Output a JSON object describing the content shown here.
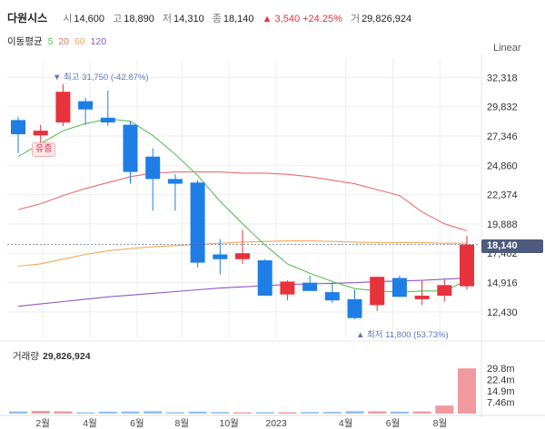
{
  "header": {
    "name": "다원시스",
    "open_label": "시",
    "open": "14,600",
    "high_label": "고",
    "high": "18,890",
    "low_label": "저",
    "low": "14,310",
    "close_label": "종",
    "close": "18,140",
    "change": "▲ 3,540 +24.25%",
    "volume_label": "거",
    "volume": "29,826,924"
  },
  "ma_legend": {
    "label": "이동평균",
    "p5": "5",
    "p20": "20",
    "p60": "60",
    "p120": "120",
    "colors": {
      "ma5": "#5cbf57",
      "ma20": "#ec6d6d",
      "ma60": "#f4a55b",
      "ma120": "#8d58c9"
    }
  },
  "scale_mode": "Linear",
  "annotations": {
    "high": "▼ 최고 31,750 (-42.87%)",
    "low": "▲ 최저 11,800 (53.73%)",
    "badge": "유증"
  },
  "current_price_tag": "18,140",
  "volume_panel": {
    "title": "거래량",
    "value": "29,826,924"
  },
  "colors": {
    "up": "#e8323c",
    "down": "#1e7ee6",
    "grid": "#eeeeee"
  },
  "chart_data": {
    "type": "candlestick",
    "y_ticks": [
      "32,318",
      "29,832",
      "27,346",
      "24,860",
      "22,374",
      "19,888",
      "17,402",
      "14,916",
      "12,430"
    ],
    "y_tick_values": [
      32318,
      29832,
      27346,
      24860,
      22374,
      19888,
      17402,
      14916,
      12430
    ],
    "ylim": [
      10800,
      33500
    ],
    "x_labels": [
      "2월",
      "4월",
      "6월",
      "8월",
      "10월",
      "2023",
      "4월",
      "6월",
      "8월"
    ],
    "x_label_at": [
      1.1,
      3.2,
      5.3,
      7.3,
      9.4,
      11.5,
      14.6,
      16.7,
      18.8
    ],
    "candles": [
      {
        "o": 28700,
        "h": 29000,
        "l": 25900,
        "c": 27500
      },
      {
        "o": 27400,
        "h": 28300,
        "l": 26500,
        "c": 27800
      },
      {
        "o": 28500,
        "h": 31750,
        "l": 28200,
        "c": 31100
      },
      {
        "o": 30300,
        "h": 30600,
        "l": 28300,
        "c": 29600
      },
      {
        "o": 28900,
        "h": 31200,
        "l": 28200,
        "c": 28500
      },
      {
        "o": 28300,
        "h": 28600,
        "l": 23300,
        "c": 24300
      },
      {
        "o": 25600,
        "h": 26300,
        "l": 21000,
        "c": 23700
      },
      {
        "o": 23700,
        "h": 24100,
        "l": 21000,
        "c": 23300
      },
      {
        "o": 23400,
        "h": 23600,
        "l": 16200,
        "c": 16600
      },
      {
        "o": 17300,
        "h": 18600,
        "l": 15600,
        "c": 16900
      },
      {
        "o": 16900,
        "h": 19400,
        "l": 16500,
        "c": 17400
      },
      {
        "o": 16800,
        "h": 16900,
        "l": 13800,
        "c": 13800
      },
      {
        "o": 13900,
        "h": 15100,
        "l": 13400,
        "c": 15000
      },
      {
        "o": 14900,
        "h": 15500,
        "l": 14300,
        "c": 14200
      },
      {
        "o": 14100,
        "h": 14900,
        "l": 13200,
        "c": 13400
      },
      {
        "o": 13500,
        "h": 14300,
        "l": 11800,
        "c": 11900
      },
      {
        "o": 13000,
        "h": 15400,
        "l": 12500,
        "c": 15400
      },
      {
        "o": 15300,
        "h": 15500,
        "l": 13700,
        "c": 13700
      },
      {
        "o": 13500,
        "h": 15100,
        "l": 13000,
        "c": 13800
      },
      {
        "o": 13800,
        "h": 15200,
        "l": 13300,
        "c": 14700
      },
      {
        "o": 14600,
        "h": 18890,
        "l": 14310,
        "c": 18140
      }
    ],
    "ma5": [
      25600,
      26700,
      27800,
      28400,
      28800,
      28600,
      27400,
      25800,
      24000,
      21800,
      19900,
      18100,
      16500,
      15700,
      15000,
      14400,
      14200,
      14100,
      14200,
      14200,
      15100
    ],
    "ma20": [
      21100,
      21600,
      22300,
      22900,
      23400,
      23900,
      24200,
      24300,
      24300,
      24300,
      24200,
      24200,
      24100,
      23900,
      23600,
      23300,
      22800,
      22300,
      20900,
      19900,
      19300
    ],
    "ma60": [
      16300,
      16500,
      16900,
      17300,
      17600,
      17800,
      17950,
      18050,
      18150,
      18250,
      18350,
      18400,
      18450,
      18450,
      18400,
      18350,
      18300,
      18300,
      18300,
      18250,
      18250
    ],
    "ma120": [
      12900,
      13100,
      13300,
      13500,
      13700,
      13850,
      14000,
      14150,
      14300,
      14450,
      14550,
      14650,
      14750,
      14800,
      14850,
      14900,
      15000,
      15050,
      15100,
      15200,
      15300
    ],
    "volume": {
      "values": [
        1.4,
        1.8,
        1.5,
        0.8,
        1.3,
        1.4,
        1.6,
        0.9,
        1.3,
        1.0,
        0.8,
        0.9,
        0.9,
        1.0,
        1.1,
        1.6,
        1.5,
        1.3,
        1.4,
        5.3,
        29.8
      ],
      "ticks": [
        "29.8m",
        "22.4m",
        "14.9m",
        "7.46m"
      ],
      "tick_values": [
        29.8,
        22.4,
        14.9,
        7.46
      ],
      "ymax": 33.5
    }
  }
}
